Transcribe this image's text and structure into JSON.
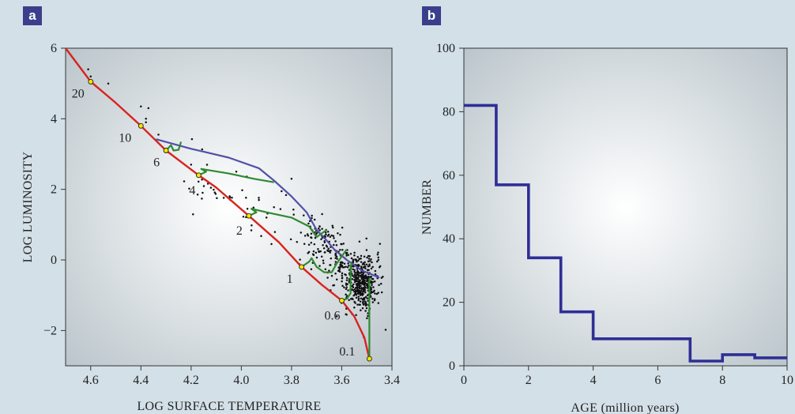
{
  "panels": {
    "a": "a",
    "b": "b"
  },
  "chart_data": [
    {
      "panel": "a",
      "type": "line",
      "xlabel": "LOG SURFACE TEMPERATURE",
      "ylabel": "LOG LUMINOSITY",
      "xlim": [
        4.7,
        3.4
      ],
      "ylim": [
        -3,
        6
      ],
      "xticks": [
        "4.6",
        "4.4",
        "4.2",
        "4.0",
        "3.8",
        "3.6",
        "3.4"
      ],
      "xtick_values": [
        4.6,
        4.4,
        4.2,
        4.0,
        3.8,
        3.6,
        3.4
      ],
      "yticks": [
        "6",
        "4",
        "2",
        "0",
        "−2"
      ],
      "ytick_values": [
        6,
        4,
        2,
        0,
        -2
      ],
      "colors": {
        "zams": "#d8241f",
        "tracks": "#2f8a32",
        "isochrone": "#5250a8",
        "stars": "#111111",
        "marker": "#f2e600"
      },
      "series": [
        {
          "role": "zams",
          "values": [
            [
              4.7,
              6.0
            ],
            [
              4.6,
              5.05
            ],
            [
              4.5,
              4.45
            ],
            [
              4.4,
              3.8
            ],
            [
              4.3,
              3.1
            ],
            [
              4.17,
              2.4
            ],
            [
              4.1,
              2.05
            ],
            [
              3.97,
              1.25
            ],
            [
              3.85,
              0.5
            ],
            [
              3.76,
              -0.2
            ],
            [
              3.68,
              -0.7
            ],
            [
              3.6,
              -1.15
            ],
            [
              3.55,
              -1.6
            ],
            [
              3.51,
              -2.2
            ],
            [
              3.49,
              -2.8
            ]
          ]
        },
        {
          "role": "isochrone",
          "values": [
            [
              4.34,
              3.42
            ],
            [
              4.2,
              3.15
            ],
            [
              4.05,
              2.9
            ],
            [
              3.93,
              2.6
            ],
            [
              3.87,
              2.25
            ],
            [
              3.8,
              1.8
            ],
            [
              3.74,
              1.35
            ],
            [
              3.7,
              0.85
            ],
            [
              3.66,
              0.55
            ],
            [
              3.63,
              0.3
            ],
            [
              3.58,
              0.0
            ],
            [
              3.52,
              -0.3
            ],
            [
              3.45,
              -0.5
            ]
          ]
        },
        {
          "role": "track",
          "mass": "6",
          "values": [
            [
              4.3,
              3.1
            ],
            [
              4.28,
              3.25
            ],
            [
              4.27,
              3.1
            ],
            [
              4.25,
              3.12
            ],
            [
              4.24,
              3.35
            ]
          ]
        },
        {
          "role": "track",
          "mass": "4",
          "values": [
            [
              4.17,
              2.4
            ],
            [
              4.14,
              2.5
            ],
            [
              4.16,
              2.58
            ],
            [
              4.05,
              2.45
            ],
            [
              3.95,
              2.3
            ],
            [
              3.87,
              2.2
            ]
          ]
        },
        {
          "role": "track",
          "mass": "2",
          "values": [
            [
              3.97,
              1.25
            ],
            [
              3.94,
              1.35
            ],
            [
              3.96,
              1.45
            ],
            [
              3.9,
              1.35
            ],
            [
              3.8,
              1.2
            ],
            [
              3.73,
              0.95
            ],
            [
              3.7,
              0.65
            ],
            [
              3.68,
              0.75
            ],
            [
              3.66,
              0.85
            ]
          ]
        },
        {
          "role": "track",
          "mass": "1",
          "values": [
            [
              3.76,
              -0.2
            ],
            [
              3.73,
              -0.05
            ],
            [
              3.72,
              0.05
            ],
            [
              3.7,
              -0.2
            ],
            [
              3.67,
              -0.35
            ],
            [
              3.64,
              -0.35
            ],
            [
              3.62,
              -0.1
            ],
            [
              3.6,
              0.1
            ],
            [
              3.58,
              0.3
            ]
          ]
        },
        {
          "role": "track",
          "mass": "0.6",
          "values": [
            [
              3.6,
              -1.15
            ],
            [
              3.58,
              -1.1
            ],
            [
              3.565,
              -0.95
            ],
            [
              3.565,
              -0.2
            ],
            [
              3.56,
              -0.05
            ]
          ]
        },
        {
          "role": "track",
          "mass": "0.1",
          "values": [
            [
              3.49,
              -2.8
            ],
            [
              3.49,
              -0.6
            ],
            [
              3.488,
              -0.5
            ]
          ]
        }
      ],
      "mass_labels": [
        {
          "label": "20",
          "x": 4.6,
          "y": 5.05
        },
        {
          "label": "10",
          "x": 4.4,
          "y": 3.8
        },
        {
          "label": "6",
          "x": 4.3,
          "y": 3.1
        },
        {
          "label": "4",
          "x": 4.17,
          "y": 2.4
        },
        {
          "label": "2",
          "x": 3.97,
          "y": 1.25
        },
        {
          "label": "1",
          "x": 3.76,
          "y": -0.2
        },
        {
          "label": "0.6",
          "x": 3.6,
          "y": -1.15
        },
        {
          "label": "0.1",
          "x": 3.49,
          "y": -2.8
        }
      ],
      "stars_count_estimate": 700
    },
    {
      "panel": "b",
      "type": "line",
      "step": true,
      "xlabel": "AGE (million years)",
      "ylabel": "NUMBER",
      "xlim": [
        0,
        10
      ],
      "ylim": [
        0,
        100
      ],
      "xticks": [
        "0",
        "2",
        "4",
        "6",
        "8",
        "10"
      ],
      "xtick_values": [
        0,
        2,
        4,
        6,
        8,
        10
      ],
      "yticks": [
        "100",
        "80",
        "60",
        "40",
        "20",
        "0"
      ],
      "ytick_values": [
        100,
        80,
        60,
        40,
        20,
        0
      ],
      "color": "#2e2e96",
      "bins": [
        [
          0,
          1
        ],
        [
          1,
          2
        ],
        [
          2,
          3
        ],
        [
          3,
          4
        ],
        [
          4,
          5
        ],
        [
          5,
          6
        ],
        [
          6,
          7
        ],
        [
          7,
          8
        ],
        [
          8,
          9
        ],
        [
          9,
          10
        ]
      ],
      "values": [
        82,
        57,
        34,
        17,
        8.5,
        8.5,
        8.5,
        1.5,
        3.5,
        2.5
      ]
    }
  ]
}
